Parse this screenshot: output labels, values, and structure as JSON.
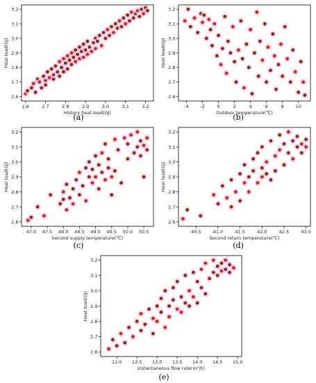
{
  "chart_data": [
    {
      "panel": "(a)",
      "type": "scatter",
      "xlabel": "History heat load(GJ)",
      "ylabel": "Heat load(GJ)",
      "xlim": [
        2.58,
        3.24
      ],
      "ylim": [
        2.57,
        3.23
      ],
      "xticks": [
        2.6,
        2.7,
        2.8,
        2.9,
        3.0,
        3.1,
        3.2
      ],
      "yticks": [
        2.6,
        2.7,
        2.8,
        2.9,
        3.0,
        3.1,
        3.2
      ],
      "tick_labels_x": [
        "2.6",
        "2.7",
        "2.8",
        "2.9",
        "3.0",
        "3.1",
        "3.2"
      ],
      "tick_labels_y": [
        "2.6",
        "2.7",
        "2.8",
        "2.9",
        "3.0",
        "3.1",
        "3.2"
      ],
      "grid": false,
      "points": [
        [
          2.6,
          2.62
        ],
        [
          2.61,
          2.64
        ],
        [
          2.63,
          2.66
        ],
        [
          2.64,
          2.69
        ],
        [
          2.65,
          2.63
        ],
        [
          2.66,
          2.72
        ],
        [
          2.67,
          2.7
        ],
        [
          2.68,
          2.66
        ],
        [
          2.69,
          2.74
        ],
        [
          2.7,
          2.71
        ],
        [
          2.7,
          2.68
        ],
        [
          2.71,
          2.77
        ],
        [
          2.72,
          2.73
        ],
        [
          2.73,
          2.79
        ],
        [
          2.74,
          2.72
        ],
        [
          2.74,
          2.75
        ],
        [
          2.75,
          2.81
        ],
        [
          2.76,
          2.77
        ],
        [
          2.77,
          2.84
        ],
        [
          2.77,
          2.74
        ],
        [
          2.78,
          2.8
        ],
        [
          2.79,
          2.86
        ],
        [
          2.79,
          2.77
        ],
        [
          2.8,
          2.83
        ],
        [
          2.81,
          2.88
        ],
        [
          2.81,
          2.79
        ],
        [
          2.82,
          2.85
        ],
        [
          2.83,
          2.9
        ],
        [
          2.83,
          2.82
        ],
        [
          2.84,
          2.87
        ],
        [
          2.85,
          2.84
        ],
        [
          2.85,
          2.92
        ],
        [
          2.86,
          2.89
        ],
        [
          2.87,
          2.86
        ],
        [
          2.87,
          2.94
        ],
        [
          2.88,
          2.91
        ],
        [
          2.89,
          2.87
        ],
        [
          2.89,
          2.96
        ],
        [
          2.9,
          2.92
        ],
        [
          2.91,
          2.89
        ],
        [
          2.91,
          2.98
        ],
        [
          2.92,
          2.94
        ],
        [
          2.93,
          2.91
        ],
        [
          2.94,
          2.97
        ],
        [
          2.95,
          3.0
        ],
        [
          2.95,
          2.93
        ],
        [
          2.96,
          2.98
        ],
        [
          2.97,
          3.02
        ],
        [
          2.98,
          2.95
        ],
        [
          2.99,
          3.04
        ],
        [
          3.0,
          3.0
        ],
        [
          3.01,
          3.06
        ],
        [
          3.02,
          3.02
        ],
        [
          3.03,
          3.08
        ],
        [
          3.04,
          3.04
        ],
        [
          3.05,
          3.1
        ],
        [
          3.06,
          3.07
        ],
        [
          3.07,
          3.12
        ],
        [
          3.08,
          3.08
        ],
        [
          3.09,
          3.14
        ],
        [
          3.1,
          3.1
        ],
        [
          3.11,
          3.16
        ],
        [
          3.12,
          3.12
        ],
        [
          3.13,
          3.18
        ],
        [
          3.14,
          3.14
        ],
        [
          3.15,
          3.17
        ],
        [
          3.16,
          3.19
        ],
        [
          3.17,
          3.15
        ],
        [
          3.18,
          3.2
        ],
        [
          3.19,
          3.17
        ],
        [
          3.2,
          3.21
        ],
        [
          3.21,
          3.19
        ]
      ]
    },
    {
      "panel": "(b)",
      "type": "scatter",
      "xlabel": "Outdoor temperature(℃)",
      "ylabel": "Heat load(GJ)",
      "xlim": [
        -5,
        11.5
      ],
      "ylim": [
        2.57,
        3.23
      ],
      "xticks": [
        -4,
        -2,
        0,
        2,
        4,
        6,
        8,
        10
      ],
      "yticks": [
        2.6,
        2.7,
        2.8,
        2.9,
        3.0,
        3.1,
        3.2
      ],
      "tick_labels_x": [
        "-4",
        "-2",
        "0",
        "2",
        "4",
        "6",
        "8",
        "10"
      ],
      "tick_labels_y": [
        "2.6",
        "2.7",
        "2.8",
        "2.9",
        "3.0",
        "3.1",
        "3.2"
      ],
      "grid": false,
      "points": [
        [
          -4.2,
          3.12
        ],
        [
          -3.8,
          3.2
        ],
        [
          -3.5,
          3.08
        ],
        [
          -3.0,
          3.14
        ],
        [
          -2.6,
          3.04
        ],
        [
          -2.2,
          3.17
        ],
        [
          -2.0,
          3.11
        ],
        [
          -1.8,
          3.16
        ],
        [
          -1.5,
          3.0
        ],
        [
          -1.2,
          3.13
        ],
        [
          -1.0,
          3.06
        ],
        [
          -0.8,
          2.95
        ],
        [
          -0.5,
          3.1
        ],
        [
          -0.2,
          2.88
        ],
        [
          0.0,
          3.02
        ],
        [
          0.3,
          2.82
        ],
        [
          0.5,
          2.93
        ],
        [
          0.8,
          3.15
        ],
        [
          1.0,
          2.76
        ],
        [
          1.2,
          2.98
        ],
        [
          1.5,
          2.9
        ],
        [
          1.8,
          3.08
        ],
        [
          2.0,
          2.84
        ],
        [
          2.2,
          2.7
        ],
        [
          2.5,
          2.92
        ],
        [
          2.8,
          3.12
        ],
        [
          3.0,
          2.86
        ],
        [
          3.2,
          2.66
        ],
        [
          3.5,
          2.96
        ],
        [
          3.8,
          2.8
        ],
        [
          4.0,
          3.06
        ],
        [
          4.2,
          2.62
        ],
        [
          4.5,
          2.9
        ],
        [
          4.8,
          3.18
        ],
        [
          5.0,
          2.74
        ],
        [
          5.2,
          2.98
        ],
        [
          5.5,
          2.85
        ],
        [
          5.8,
          3.1
        ],
        [
          6.0,
          2.7
        ],
        [
          6.2,
          2.94
        ],
        [
          6.5,
          2.78
        ],
        [
          6.8,
          3.03
        ],
        [
          7.0,
          2.88
        ],
        [
          7.2,
          2.65
        ],
        [
          7.5,
          2.82
        ],
        [
          7.8,
          2.96
        ],
        [
          8.0,
          2.74
        ],
        [
          8.3,
          3.08
        ],
        [
          8.6,
          2.86
        ],
        [
          9.0,
          2.7
        ],
        [
          9.3,
          2.92
        ],
        [
          9.6,
          2.77
        ],
        [
          10.0,
          2.63
        ],
        [
          10.3,
          2.84
        ],
        [
          10.6,
          2.7
        ],
        [
          10.8,
          2.61
        ]
      ]
    },
    {
      "panel": "(c)",
      "type": "scatter",
      "xlabel": "Second supply temperature(℃)",
      "ylabel": "Heat load(GJ)",
      "xlim": [
        46.7,
        50.8
      ],
      "ylim": [
        2.57,
        3.23
      ],
      "xticks": [
        47.0,
        47.5,
        48.0,
        48.5,
        49.0,
        49.5,
        50.0,
        50.5
      ],
      "yticks": [
        2.6,
        2.7,
        2.8,
        2.9,
        3.0,
        3.1,
        3.2
      ],
      "tick_labels_x": [
        "47.0",
        "47.5",
        "48.0",
        "48.5",
        "49.0",
        "49.5",
        "50.0",
        "50.5"
      ],
      "tick_labels_y": [
        "2.6",
        "2.7",
        "2.8",
        "2.9",
        "3.0",
        "3.1",
        "3.2"
      ],
      "grid": false,
      "points": [
        [
          46.9,
          2.61
        ],
        [
          47.0,
          2.63
        ],
        [
          47.2,
          2.7
        ],
        [
          47.4,
          2.64
        ],
        [
          47.6,
          2.78
        ],
        [
          47.9,
          2.72
        ],
        [
          48.0,
          2.8
        ],
        [
          48.0,
          2.75
        ],
        [
          48.1,
          2.85
        ],
        [
          48.1,
          2.68
        ],
        [
          48.2,
          2.76
        ],
        [
          48.3,
          2.82
        ],
        [
          48.3,
          2.72
        ],
        [
          48.4,
          2.88
        ],
        [
          48.5,
          2.78
        ],
        [
          48.5,
          2.93
        ],
        [
          48.6,
          2.84
        ],
        [
          48.7,
          2.96
        ],
        [
          48.7,
          2.74
        ],
        [
          48.8,
          2.9
        ],
        [
          48.8,
          3.0
        ],
        [
          48.9,
          2.86
        ],
        [
          48.9,
          2.95
        ],
        [
          49.0,
          3.04
        ],
        [
          49.0,
          2.9
        ],
        [
          49.1,
          2.98
        ],
        [
          49.1,
          2.82
        ],
        [
          49.2,
          3.06
        ],
        [
          49.2,
          2.93
        ],
        [
          49.3,
          3.12
        ],
        [
          49.3,
          2.88
        ],
        [
          49.4,
          2.96
        ],
        [
          49.4,
          3.02
        ],
        [
          49.5,
          2.9
        ],
        [
          49.5,
          2.78
        ],
        [
          49.6,
          2.94
        ],
        [
          49.6,
          3.15
        ],
        [
          49.7,
          3.08
        ],
        [
          49.8,
          2.86
        ],
        [
          49.9,
          3.16
        ],
        [
          50.0,
          3.02
        ],
        [
          50.0,
          3.12
        ],
        [
          50.1,
          3.18
        ],
        [
          50.2,
          3.06
        ],
        [
          50.3,
          3.1
        ],
        [
          50.3,
          3.2
        ],
        [
          50.4,
          3.14
        ],
        [
          50.4,
          3.04
        ],
        [
          50.5,
          3.11
        ],
        [
          50.5,
          2.9
        ],
        [
          50.6,
          3.08
        ],
        [
          50.6,
          3.16
        ]
      ]
    },
    {
      "panel": "(d)",
      "type": "scatter",
      "xlabel": "Second return temperature(℃)",
      "ylabel": "Heat load(GJ)",
      "xlim": [
        40.1,
        43.1
      ],
      "ylim": [
        2.57,
        3.23
      ],
      "xticks": [
        40.5,
        41.0,
        41.5,
        42.0,
        42.5,
        43.0
      ],
      "yticks": [
        2.6,
        2.7,
        2.8,
        2.9,
        3.0,
        3.1,
        3.2
      ],
      "tick_labels_x": [
        "40.5",
        "41.0",
        "41.5",
        "42.0",
        "42.5",
        "43.0"
      ],
      "tick_labels_y": [
        "2.6",
        "2.7",
        "2.8",
        "2.9",
        "3.0",
        "3.1",
        "3.2"
      ],
      "grid": false,
      "points": [
        [
          40.2,
          2.62
        ],
        [
          40.3,
          2.68
        ],
        [
          40.6,
          2.64
        ],
        [
          40.9,
          2.78
        ],
        [
          41.0,
          2.72
        ],
        [
          41.1,
          2.84
        ],
        [
          41.2,
          2.76
        ],
        [
          41.3,
          2.7
        ],
        [
          41.3,
          2.88
        ],
        [
          41.4,
          2.8
        ],
        [
          41.5,
          2.92
        ],
        [
          41.5,
          2.74
        ],
        [
          41.6,
          2.86
        ],
        [
          41.6,
          2.98
        ],
        [
          41.7,
          2.9
        ],
        [
          41.7,
          2.8
        ],
        [
          41.8,
          3.02
        ],
        [
          41.8,
          2.94
        ],
        [
          41.9,
          2.86
        ],
        [
          41.9,
          3.06
        ],
        [
          42.0,
          2.96
        ],
        [
          42.0,
          2.9
        ],
        [
          42.0,
          3.1
        ],
        [
          42.1,
          2.92
        ],
        [
          42.1,
          3.0
        ],
        [
          42.2,
          2.88
        ],
        [
          42.2,
          3.14
        ],
        [
          42.3,
          3.04
        ],
        [
          42.3,
          2.94
        ],
        [
          42.4,
          3.18
        ],
        [
          42.4,
          3.08
        ],
        [
          42.5,
          2.98
        ],
        [
          42.5,
          3.12
        ],
        [
          42.6,
          3.2
        ],
        [
          42.6,
          3.06
        ],
        [
          42.7,
          3.14
        ],
        [
          42.7,
          3.02
        ],
        [
          42.8,
          3.1
        ],
        [
          42.8,
          3.17
        ],
        [
          42.9,
          3.12
        ],
        [
          42.9,
          3.06
        ],
        [
          43.0,
          3.15
        ],
        [
          43.0,
          3.1
        ]
      ]
    },
    {
      "panel": "(e)",
      "type": "scatter",
      "xlabel": "Instantaneous flow rate(m³/h)",
      "ylabel": "Heat load(GJ)",
      "xlim": [
        11.6,
        15.1
      ],
      "ylim": [
        2.57,
        3.23
      ],
      "xticks": [
        12.0,
        12.5,
        13.0,
        13.5,
        14.0,
        14.5,
        15.0
      ],
      "yticks": [
        2.6,
        2.7,
        2.8,
        2.9,
        3.0,
        3.1,
        3.2
      ],
      "tick_labels_x": [
        "12.0",
        "12.5",
        "13.0",
        "13.5",
        "14.0",
        "14.5",
        "15.0"
      ],
      "tick_labels_y": [
        "2.6",
        "2.7",
        "2.8",
        "2.9",
        "3.0",
        "3.1",
        "3.2"
      ],
      "grid": false,
      "points": [
        [
          11.8,
          2.62
        ],
        [
          11.9,
          2.68
        ],
        [
          12.0,
          2.64
        ],
        [
          12.1,
          2.72
        ],
        [
          12.2,
          2.66
        ],
        [
          12.3,
          2.76
        ],
        [
          12.4,
          2.7
        ],
        [
          12.5,
          2.8
        ],
        [
          12.6,
          2.74
        ],
        [
          12.6,
          2.85
        ],
        [
          12.7,
          2.78
        ],
        [
          12.8,
          2.88
        ],
        [
          12.9,
          2.82
        ],
        [
          12.9,
          2.72
        ],
        [
          13.0,
          2.9
        ],
        [
          13.0,
          2.8
        ],
        [
          13.1,
          2.95
        ],
        [
          13.1,
          2.86
        ],
        [
          13.2,
          2.76
        ],
        [
          13.2,
          3.0
        ],
        [
          13.3,
          2.9
        ],
        [
          13.3,
          2.83
        ],
        [
          13.4,
          3.02
        ],
        [
          13.4,
          2.94
        ],
        [
          13.5,
          2.88
        ],
        [
          13.5,
          3.06
        ],
        [
          13.6,
          2.96
        ],
        [
          13.6,
          2.86
        ],
        [
          13.7,
          3.1
        ],
        [
          13.7,
          2.92
        ],
        [
          13.8,
          3.0
        ],
        [
          13.8,
          2.9
        ],
        [
          13.9,
          3.12
        ],
        [
          13.9,
          2.96
        ],
        [
          14.0,
          3.06
        ],
        [
          14.0,
          2.92
        ],
        [
          14.1,
          3.14
        ],
        [
          14.1,
          3.02
        ],
        [
          14.2,
          2.98
        ],
        [
          14.2,
          3.18
        ],
        [
          14.3,
          3.08
        ],
        [
          14.4,
          3.12
        ],
        [
          14.4,
          3.2
        ],
        [
          14.5,
          3.1
        ],
        [
          14.5,
          3.16
        ],
        [
          14.6,
          3.13
        ],
        [
          14.6,
          3.18
        ],
        [
          14.7,
          3.14
        ],
        [
          14.7,
          3.2
        ],
        [
          14.8,
          3.12
        ],
        [
          14.8,
          3.17
        ],
        [
          14.9,
          3.15
        ]
      ]
    }
  ]
}
